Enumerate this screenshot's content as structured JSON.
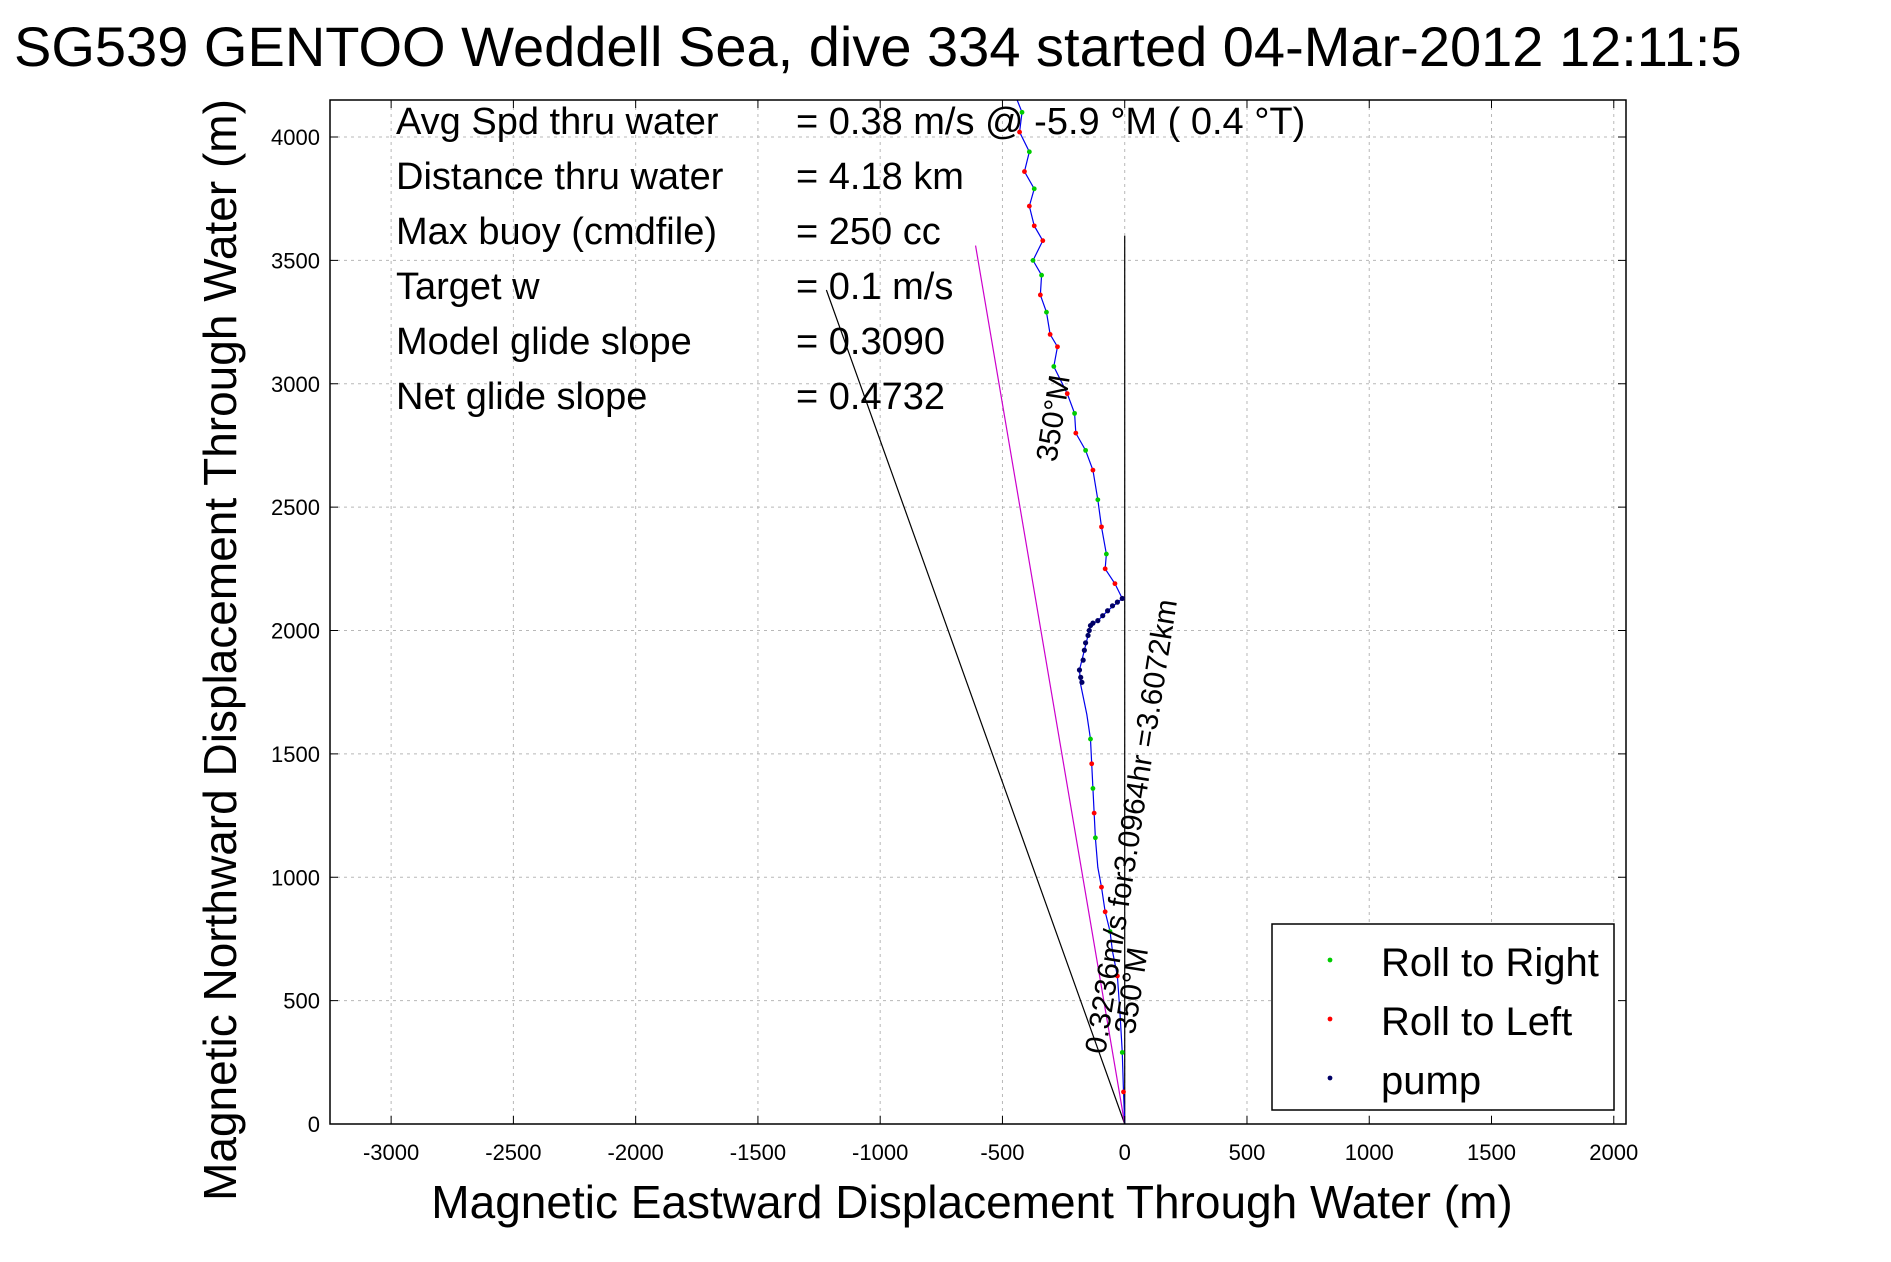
{
  "chart_data": {
    "type": "scatter",
    "title": "SG539 GENTOO Weddell Sea, dive 334 started 04-Mar-2012 12:11:5",
    "xlabel": "Magnetic Eastward Displacement Through Water (m)",
    "ylabel": "Magnetic Northward Displacement Through Water (m)",
    "xlim": [
      -3250,
      2050
    ],
    "ylim": [
      0,
      4150
    ],
    "xticks": [
      -3000,
      -2500,
      -2000,
      -1500,
      -1000,
      -500,
      0,
      500,
      1000,
      1500,
      2000
    ],
    "yticks": [
      0,
      500,
      1000,
      1500,
      2000,
      2500,
      3000,
      3500,
      4000
    ],
    "grid": true,
    "legend_position": "bottom-right",
    "info_lines": [
      {
        "label": "Avg Spd thru water",
        "value": "=  0.38 m/s @  -5.9 °M (  0.4 °T)"
      },
      {
        "label": "Distance thru water",
        "value": "=  4.18 km"
      },
      {
        "label": "Max buoy (cmdfile)",
        "value": "= 250 cc"
      },
      {
        "label": "Target w",
        "value": "= 0.1 m/s"
      },
      {
        "label": "Model glide slope",
        "value": "= 0.3090"
      },
      {
        "label": "Net glide slope",
        "value": "= 0.4732"
      }
    ],
    "annotations": {
      "current_label": "0.3236m/s for3.0964hr =3.6072km",
      "heading_label_upper": "350°M",
      "heading_label_lower": "350°M"
    },
    "reference_lines": [
      {
        "color": "#000000",
        "points": [
          [
            0,
            0
          ],
          [
            -1220,
            3380
          ]
        ]
      },
      {
        "color": "#cc00cc",
        "points": [
          [
            0,
            0
          ],
          [
            -610,
            3560
          ]
        ]
      },
      {
        "color": "#000000",
        "points": [
          [
            0,
            0
          ],
          [
            0,
            3600
          ]
        ]
      }
    ],
    "series": [
      {
        "name": "track",
        "color": "#0000ee",
        "points": [
          [
            0,
            0
          ],
          [
            -5,
            130
          ],
          [
            -10,
            290
          ],
          [
            -20,
            460
          ],
          [
            -30,
            600
          ],
          [
            -50,
            700
          ],
          [
            -60,
            780
          ],
          [
            -80,
            860
          ],
          [
            -95,
            960
          ],
          [
            -110,
            1040
          ],
          [
            -120,
            1160
          ],
          [
            -125,
            1260
          ],
          [
            -130,
            1360
          ],
          [
            -135,
            1460
          ],
          [
            -140,
            1560
          ],
          [
            -155,
            1660
          ],
          [
            -180,
            1780
          ],
          [
            -185,
            1840
          ],
          [
            -165,
            1920
          ],
          [
            -150,
            1980
          ],
          [
            -140,
            2020
          ],
          [
            -110,
            2040
          ],
          [
            -70,
            2080
          ],
          [
            -10,
            2130
          ],
          [
            -40,
            2190
          ],
          [
            -80,
            2250
          ],
          [
            -75,
            2310
          ],
          [
            -95,
            2420
          ],
          [
            -110,
            2530
          ],
          [
            -130,
            2650
          ],
          [
            -160,
            2730
          ],
          [
            -200,
            2800
          ],
          [
            -205,
            2880
          ],
          [
            -235,
            2960
          ],
          [
            -290,
            3070
          ],
          [
            -275,
            3150
          ],
          [
            -305,
            3200
          ],
          [
            -320,
            3290
          ],
          [
            -345,
            3360
          ],
          [
            -340,
            3440
          ],
          [
            -375,
            3500
          ],
          [
            -335,
            3580
          ],
          [
            -370,
            3640
          ],
          [
            -390,
            3720
          ],
          [
            -370,
            3790
          ],
          [
            -410,
            3860
          ],
          [
            -390,
            3940
          ],
          [
            -430,
            4020
          ],
          [
            -420,
            4100
          ],
          [
            -440,
            4150
          ]
        ]
      },
      {
        "name": "Roll to Right",
        "color": "#00cc00",
        "points": [
          [
            -10,
            290
          ],
          [
            -60,
            780
          ],
          [
            -120,
            1160
          ],
          [
            -130,
            1360
          ],
          [
            -140,
            1560
          ],
          [
            -150,
            1980
          ],
          [
            -75,
            2310
          ],
          [
            -110,
            2530
          ],
          [
            -160,
            2730
          ],
          [
            -205,
            2880
          ],
          [
            -290,
            3070
          ],
          [
            -320,
            3290
          ],
          [
            -340,
            3440
          ],
          [
            -375,
            3500
          ],
          [
            -370,
            3790
          ],
          [
            -390,
            3940
          ],
          [
            -420,
            4100
          ]
        ]
      },
      {
        "name": "Roll to Left",
        "color": "#ff0000",
        "points": [
          [
            -5,
            130
          ],
          [
            -30,
            600
          ],
          [
            -80,
            860
          ],
          [
            -95,
            960
          ],
          [
            -125,
            1260
          ],
          [
            -135,
            1460
          ],
          [
            -10,
            2130
          ],
          [
            -40,
            2190
          ],
          [
            -80,
            2250
          ],
          [
            -95,
            2420
          ],
          [
            -130,
            2650
          ],
          [
            -200,
            2800
          ],
          [
            -235,
            2960
          ],
          [
            -275,
            3150
          ],
          [
            -305,
            3200
          ],
          [
            -345,
            3360
          ],
          [
            -335,
            3580
          ],
          [
            -370,
            3640
          ],
          [
            -390,
            3720
          ],
          [
            -410,
            3860
          ],
          [
            -430,
            4020
          ]
        ]
      },
      {
        "name": "pump",
        "color": "#000066",
        "points": [
          [
            -185,
            1840
          ],
          [
            -180,
            1810
          ],
          [
            -175,
            1790
          ],
          [
            -170,
            1880
          ],
          [
            -165,
            1920
          ],
          [
            -160,
            1950
          ],
          [
            -150,
            1980
          ],
          [
            -145,
            2000
          ],
          [
            -140,
            2020
          ],
          [
            -130,
            2030
          ],
          [
            -110,
            2040
          ],
          [
            -90,
            2060
          ],
          [
            -70,
            2080
          ],
          [
            -50,
            2100
          ],
          [
            -30,
            2115
          ],
          [
            -10,
            2130
          ]
        ]
      }
    ],
    "legend": [
      {
        "label": "Roll to Right",
        "color": "#00cc00"
      },
      {
        "label": "Roll to Left",
        "color": "#ff0000"
      },
      {
        "label": "pump",
        "color": "#000066"
      }
    ]
  }
}
